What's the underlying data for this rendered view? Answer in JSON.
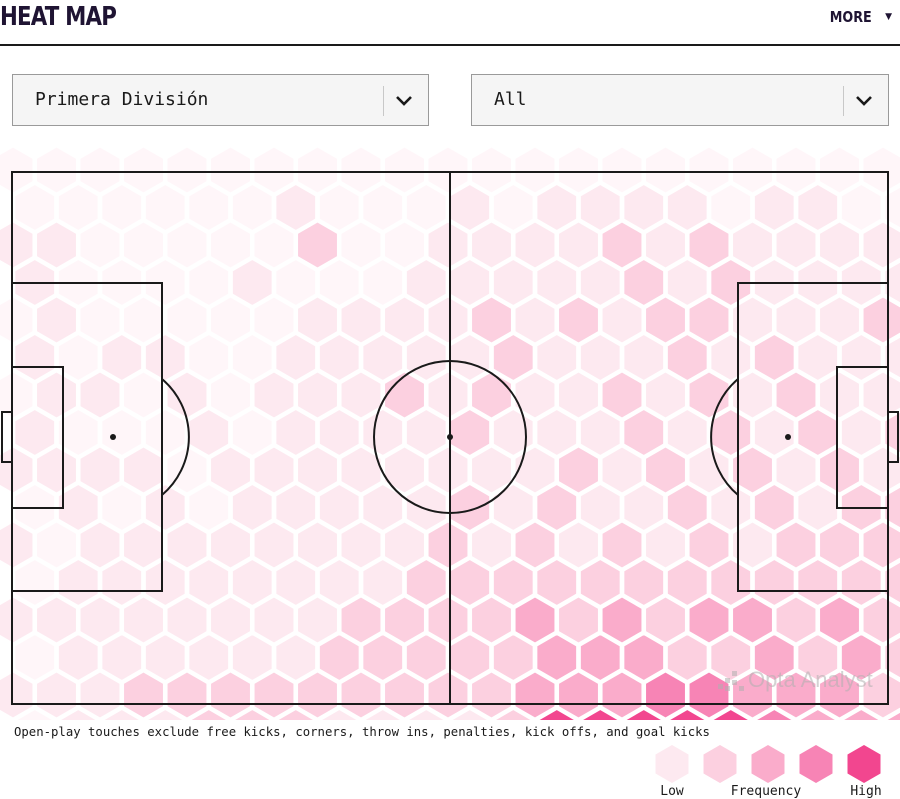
{
  "header": {
    "title": "HEAT MAP",
    "more_label": "MORE"
  },
  "filters": {
    "competition": "Primera División",
    "type": "All"
  },
  "watermark": "Opta Analyst",
  "note": "Open-play touches exclude free kicks, corners, throw ins, penalties, kick offs, and goal kicks",
  "legend": {
    "labels": [
      "Low",
      "Frequency",
      "High"
    ],
    "colors": [
      "#fde9f0",
      "#fcd0e0",
      "#faaccb",
      "#f784b5",
      "#f2468f"
    ]
  },
  "heatmap": {
    "scale_colors": [
      "#fff6f9",
      "#fde9f0",
      "#fcd0e0",
      "#faaccb",
      "#f784b5",
      "#f2468f"
    ],
    "rows": [
      "0000000000000000000000",
      "0000001000101111011000",
      "1100000200111121211111",
      "1000010001111121211111",
      "0100000111121212211121",
      "1011001111121112121112",
      "0110101112121121212111",
      "1000101111211121212121",
      "1111011111111212121212",
      "0101011111212112121222",
      "1011111111212121212222",
      "0111111112222222222222",
      "1111111122223232332322",
      "0111111222223332232323",
      "1112222222223334433323",
      "0111222111125555543333",
      "0000000000002333332000"
    ]
  }
}
